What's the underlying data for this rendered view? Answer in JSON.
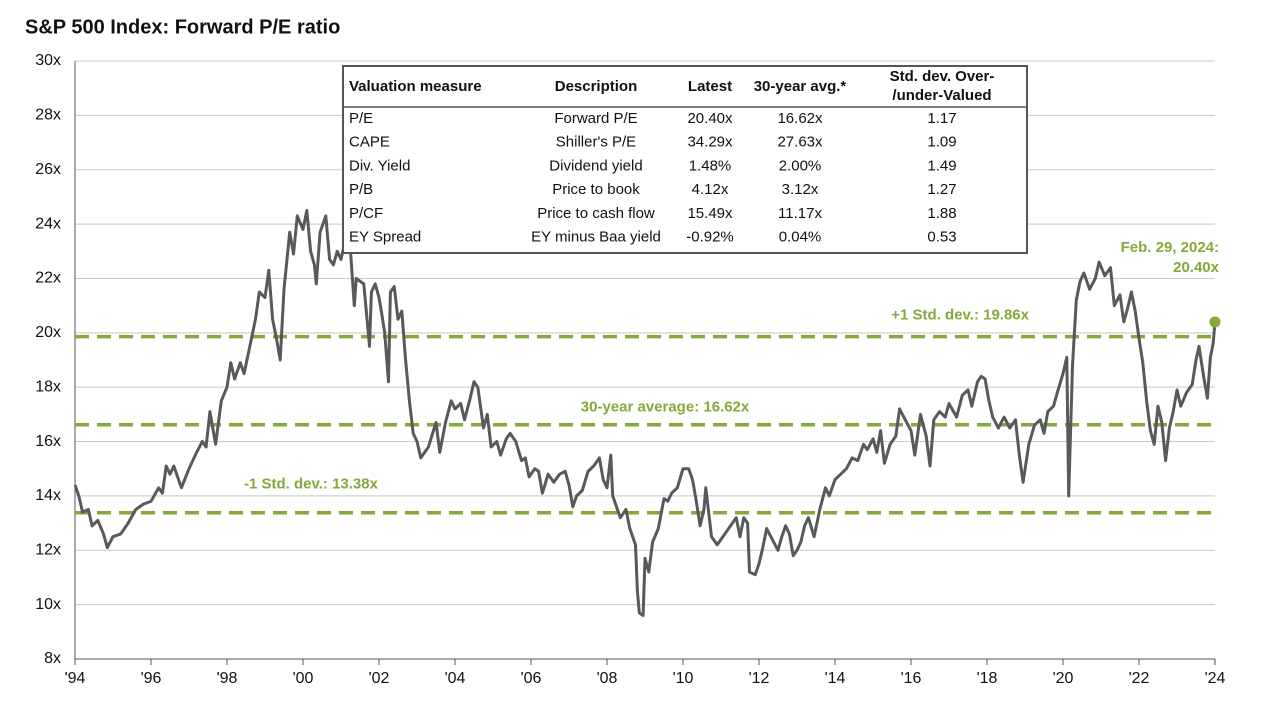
{
  "chart_data": {
    "type": "line",
    "title": "S&P 500 Index: Forward P/E ratio",
    "xlim": [
      1994,
      2024
    ],
    "ylim": [
      8,
      30
    ],
    "xticks": [
      {
        "value": 1994,
        "label": "'94"
      },
      {
        "value": 1996,
        "label": "'96"
      },
      {
        "value": 1998,
        "label": "'98"
      },
      {
        "value": 2000,
        "label": "'00"
      },
      {
        "value": 2002,
        "label": "'02"
      },
      {
        "value": 2004,
        "label": "'04"
      },
      {
        "value": 2006,
        "label": "'06"
      },
      {
        "value": 2008,
        "label": "'08"
      },
      {
        "value": 2010,
        "label": "'10"
      },
      {
        "value": 2012,
        "label": "'12"
      },
      {
        "value": 2014,
        "label": "'14"
      },
      {
        "value": 2016,
        "label": "'16"
      },
      {
        "value": 2018,
        "label": "'18"
      },
      {
        "value": 2020,
        "label": "'20"
      },
      {
        "value": 2022,
        "label": "'22"
      },
      {
        "value": 2024,
        "label": "'24"
      }
    ],
    "yticks": [
      {
        "value": 8,
        "label": "8x"
      },
      {
        "value": 10,
        "label": "10x"
      },
      {
        "value": 12,
        "label": "12x"
      },
      {
        "value": 14,
        "label": "14x"
      },
      {
        "value": 16,
        "label": "16x"
      },
      {
        "value": 18,
        "label": "18x"
      },
      {
        "value": 20,
        "label": "20x"
      },
      {
        "value": 22,
        "label": "22x"
      },
      {
        "value": 24,
        "label": "24x"
      },
      {
        "value": 26,
        "label": "26x"
      },
      {
        "value": 28,
        "label": "28x"
      },
      {
        "value": 30,
        "label": "30x"
      }
    ],
    "grid": true,
    "series": [
      {
        "color": "#58595b",
        "x": [
          1994.0,
          1994.1,
          1994.2,
          1994.35,
          1994.45,
          1994.6,
          1994.75,
          1994.85,
          1995.0,
          1995.2,
          1995.4,
          1995.6,
          1995.8,
          1996.0,
          1996.2,
          1996.3,
          1996.4,
          1996.5,
          1996.6,
          1996.8,
          1997.0,
          1997.2,
          1997.35,
          1997.45,
          1997.55,
          1997.7,
          1997.85,
          1998.0,
          1998.1,
          1998.2,
          1998.35,
          1998.45,
          1998.6,
          1998.75,
          1998.85,
          1999.0,
          1999.1,
          1999.2,
          1999.3,
          1999.4,
          1999.5,
          1999.65,
          1999.75,
          1999.85,
          2000.0,
          2000.1,
          2000.2,
          2000.3,
          2000.35,
          2000.45,
          2000.6,
          2000.7,
          2000.8,
          2000.9,
          2001.0,
          2001.1,
          2001.25,
          2001.35,
          2001.4,
          2001.6,
          2001.75,
          2001.8,
          2001.9,
          2002.0,
          2002.05,
          2002.15,
          2002.25,
          2002.3,
          2002.4,
          2002.5,
          2002.6,
          2002.7,
          2002.8,
          2002.9,
          2003.0,
          2003.1,
          2003.3,
          2003.5,
          2003.6,
          2003.75,
          2003.9,
          2004.0,
          2004.15,
          2004.25,
          2004.4,
          2004.5,
          2004.6,
          2004.75,
          2004.85,
          2004.95,
          2005.1,
          2005.2,
          2005.35,
          2005.45,
          2005.6,
          2005.75,
          2005.85,
          2005.95,
          2006.1,
          2006.2,
          2006.3,
          2006.45,
          2006.6,
          2006.75,
          2006.9,
          2007.0,
          2007.1,
          2007.2,
          2007.35,
          2007.5,
          2007.65,
          2007.8,
          2007.9,
          2008.0,
          2008.1,
          2008.15,
          2008.25,
          2008.35,
          2008.5,
          2008.6,
          2008.75,
          2008.8,
          2008.85,
          2008.95,
          2009.0,
          2009.1,
          2009.2,
          2009.35,
          2009.5,
          2009.6,
          2009.7,
          2009.85,
          2010.0,
          2010.15,
          2010.25,
          2010.35,
          2010.45,
          2010.55,
          2010.6,
          2010.75,
          2010.9,
          2011.1,
          2011.25,
          2011.4,
          2011.5,
          2011.6,
          2011.7,
          2011.75,
          2011.9,
          2012.0,
          2012.1,
          2012.2,
          2012.35,
          2012.5,
          2012.6,
          2012.7,
          2012.8,
          2012.9,
          2013.0,
          2013.1,
          2013.2,
          2013.3,
          2013.45,
          2013.6,
          2013.75,
          2013.85,
          2014.0,
          2014.15,
          2014.3,
          2014.45,
          2014.6,
          2014.75,
          2014.85,
          2015.0,
          2015.1,
          2015.2,
          2015.3,
          2015.45,
          2015.6,
          2015.7,
          2015.85,
          2016.0,
          2016.1,
          2016.25,
          2016.4,
          2016.5,
          2016.6,
          2016.75,
          2016.9,
          2017.0,
          2017.2,
          2017.35,
          2017.5,
          2017.6,
          2017.75,
          2017.85,
          2017.95,
          2018.05,
          2018.15,
          2018.3,
          2018.45,
          2018.6,
          2018.75,
          2018.85,
          2018.95,
          2019.1,
          2019.25,
          2019.4,
          2019.5,
          2019.6,
          2019.75,
          2019.85,
          2020.0,
          2020.1,
          2020.15,
          2020.25,
          2020.35,
          2020.45,
          2020.55,
          2020.7,
          2020.85,
          2020.95,
          2021.1,
          2021.25,
          2021.35,
          2021.5,
          2021.6,
          2021.7,
          2021.8,
          2021.9,
          2022.0,
          2022.1,
          2022.2,
          2022.3,
          2022.4,
          2022.5,
          2022.6,
          2022.7,
          2022.8,
          2022.9,
          2023.0,
          2023.1,
          2023.25,
          2023.4,
          2023.5,
          2023.58,
          2023.7,
          2023.8,
          2023.88,
          2023.95,
          2024.0
        ],
        "values": [
          14.4,
          14.0,
          13.4,
          13.5,
          12.9,
          13.1,
          12.6,
          12.1,
          12.5,
          12.6,
          13.0,
          13.5,
          13.7,
          13.8,
          14.3,
          14.1,
          15.1,
          14.8,
          15.1,
          14.3,
          15.0,
          15.6,
          16.0,
          15.8,
          17.1,
          15.9,
          17.5,
          18.0,
          18.9,
          18.3,
          18.9,
          18.5,
          19.5,
          20.5,
          21.5,
          21.3,
          22.3,
          20.5,
          19.8,
          19.0,
          21.6,
          23.7,
          22.9,
          24.3,
          23.8,
          24.5,
          23.0,
          22.5,
          21.8,
          23.7,
          24.3,
          22.7,
          22.5,
          23.0,
          22.7,
          23.3,
          23.0,
          21.0,
          22.0,
          21.8,
          19.5,
          21.5,
          21.8,
          21.3,
          20.9,
          20.0,
          18.2,
          21.5,
          21.7,
          20.5,
          20.8,
          19.0,
          17.5,
          16.3,
          16.0,
          15.4,
          15.8,
          16.7,
          15.6,
          16.7,
          17.5,
          17.2,
          17.4,
          16.8,
          17.6,
          18.2,
          18.0,
          16.5,
          17.0,
          15.8,
          16.0,
          15.5,
          16.1,
          16.3,
          16.0,
          15.3,
          15.4,
          14.7,
          15.0,
          14.9,
          14.1,
          14.8,
          14.5,
          14.8,
          14.9,
          14.4,
          13.6,
          14.0,
          14.2,
          14.9,
          15.1,
          15.4,
          14.6,
          14.3,
          15.5,
          14.0,
          13.6,
          13.2,
          13.5,
          12.8,
          12.2,
          10.5,
          9.7,
          9.6,
          11.7,
          11.2,
          12.3,
          12.8,
          13.9,
          13.8,
          14.1,
          14.3,
          15.0,
          15.0,
          14.6,
          13.8,
          12.9,
          13.5,
          14.3,
          12.5,
          12.2,
          12.6,
          12.9,
          13.2,
          12.5,
          13.2,
          13.0,
          11.2,
          11.1,
          11.5,
          12.1,
          12.8,
          12.4,
          12.0,
          12.5,
          12.9,
          12.6,
          11.8,
          12.0,
          12.3,
          12.9,
          13.2,
          12.5,
          13.5,
          14.3,
          14.0,
          14.6,
          14.8,
          15.0,
          15.4,
          15.3,
          15.9,
          15.7,
          16.1,
          15.6,
          16.4,
          15.2,
          15.9,
          16.2,
          17.2,
          16.8,
          16.4,
          15.5,
          17.0,
          16.2,
          15.1,
          16.8,
          17.1,
          16.9,
          17.4,
          16.9,
          17.7,
          17.9,
          17.3,
          18.2,
          18.4,
          18.3,
          17.5,
          16.9,
          16.5,
          16.9,
          16.5,
          16.8,
          15.5,
          14.5,
          15.9,
          16.6,
          16.8,
          16.3,
          17.1,
          17.3,
          17.8,
          18.5,
          19.1,
          14.0,
          18.8,
          21.2,
          21.9,
          22.2,
          21.6,
          22.0,
          22.6,
          22.1,
          22.4,
          21.0,
          21.4,
          20.4,
          20.9,
          21.5,
          20.8,
          19.8,
          18.9,
          17.5,
          16.4,
          15.9,
          17.3,
          16.7,
          15.3,
          16.5,
          17.1,
          17.9,
          17.3,
          17.8,
          18.1,
          19.0,
          19.5,
          18.4,
          17.6,
          19.1,
          19.6,
          20.4
        ]
      }
    ],
    "reference_lines": [
      {
        "value": 19.86,
        "label": "+1 Std. dev.: 19.86x"
      },
      {
        "value": 16.62,
        "label": "30-year average: 16.62x"
      },
      {
        "value": 13.38,
        "label": "-1 Std. dev.: 13.38x"
      }
    ],
    "reference_color": "#86a83a",
    "annotation": [
      "Feb. 29, 2024:",
      "20.40x"
    ],
    "table": {
      "columns": [
        "Valuation measure",
        "Description",
        "Latest",
        "30-year avg.*",
        [
          "Std. dev. Over-",
          "/under-Valued"
        ]
      ],
      "rows": [
        [
          "P/E",
          "Forward P/E",
          "20.40x",
          "16.62x",
          "1.17"
        ],
        [
          "CAPE",
          "Shiller's P/E",
          "34.29x",
          "27.63x",
          "1.09"
        ],
        [
          "Div. Yield",
          "Dividend yield",
          "1.48%",
          "2.00%",
          "1.49"
        ],
        [
          "P/B",
          "Price to book",
          "4.12x",
          "3.12x",
          "1.27"
        ],
        [
          "P/CF",
          "Price to cash flow",
          "15.49x",
          "11.17x",
          "1.88"
        ],
        [
          "EY Spread",
          "EY minus Baa yield",
          "-0.92%",
          "0.04%",
          "0.53"
        ]
      ]
    }
  }
}
